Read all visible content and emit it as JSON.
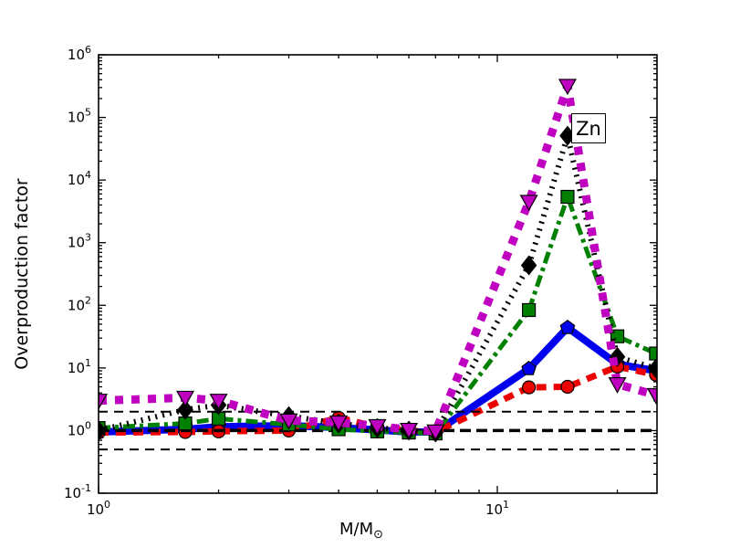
{
  "figure": {
    "ylabel": "Overproduction factor",
    "xlabel_main": "M/M",
    "xlabel_sub": "⊙",
    "annotation_text": "Zn"
  },
  "chart_data": {
    "type": "line",
    "title": "",
    "xlabel": "M/M⊙",
    "ylabel": "Overproduction factor",
    "xscale": "log",
    "yscale": "log",
    "xlim": [
      1,
      25.1
    ],
    "ylim": [
      0.1,
      1000000
    ],
    "grid": false,
    "legend": "none",
    "annotation": {
      "text": "Zn",
      "x": 17,
      "y": 65000
    },
    "x": [
      1,
      1.65,
      2,
      3,
      4,
      5,
      6,
      7,
      12,
      15,
      20,
      25
    ],
    "series": [
      {
        "name": "blue-solid",
        "color": "#0000ee",
        "linestyle": "solid",
        "marker": "pentagon",
        "values": [
          0.95,
          1.05,
          1.15,
          1.2,
          1.12,
          1.02,
          0.95,
          0.95,
          9.7,
          44,
          11.5,
          9.0
        ]
      },
      {
        "name": "red-dashed",
        "color": "#ee0000",
        "linestyle": "dashed",
        "marker": "circle",
        "values": [
          0.93,
          0.95,
          0.97,
          1.0,
          1.6,
          1.15,
          1.0,
          0.95,
          4.9,
          5.0,
          10.5,
          7.8
        ]
      },
      {
        "name": "green-dashdot",
        "color": "#008000",
        "linestyle": "dashdot",
        "marker": "square",
        "values": [
          1.1,
          1.3,
          1.55,
          1.25,
          1.05,
          0.97,
          0.93,
          0.9,
          84,
          5400,
          32,
          17
        ]
      },
      {
        "name": "black-dotted",
        "color": "#000000",
        "linestyle": "dotted",
        "marker": "diamond",
        "values": [
          1.0,
          2.15,
          2.55,
          1.7,
          1.3,
          1.1,
          1.0,
          0.93,
          435,
          51000,
          15,
          9.8
        ]
      },
      {
        "name": "magenta-dashed",
        "color": "#c000c0",
        "linestyle": "heavydash",
        "marker": "triangle-down",
        "values": [
          3.0,
          3.35,
          3.0,
          1.45,
          1.35,
          1.18,
          1.03,
          0.97,
          4500,
          320000,
          5.5,
          3.7
        ]
      }
    ],
    "reference_lines": [
      {
        "y": 2,
        "color": "#000000",
        "style": "thin-dashed"
      },
      {
        "y": 1,
        "color": "#000000",
        "style": "thick-dashed"
      },
      {
        "y": 0.5,
        "color": "#000000",
        "style": "thin-dashed"
      }
    ],
    "x_ticks": [
      {
        "value": 1,
        "base": "10",
        "exp": "0"
      },
      {
        "value": 10,
        "base": "10",
        "exp": "1"
      }
    ],
    "x_minor_ticks": [
      2,
      3,
      4,
      5,
      6,
      7,
      8,
      9,
      20
    ],
    "y_ticks": [
      {
        "value": 1000000,
        "base": "10",
        "exp": "6"
      },
      {
        "value": 100000,
        "base": "10",
        "exp": "5"
      },
      {
        "value": 10000,
        "base": "10",
        "exp": "4"
      },
      {
        "value": 1000,
        "base": "10",
        "exp": "3"
      },
      {
        "value": 100,
        "base": "10",
        "exp": "2"
      },
      {
        "value": 10,
        "base": "10",
        "exp": "1"
      },
      {
        "value": 1,
        "base": "10",
        "exp": "0"
      },
      {
        "value": 0.1,
        "base": "10",
        "exp": "-1"
      }
    ],
    "y_minor_ticks_per_decade": [
      2,
      3,
      4,
      5,
      6,
      7,
      8,
      9
    ]
  }
}
